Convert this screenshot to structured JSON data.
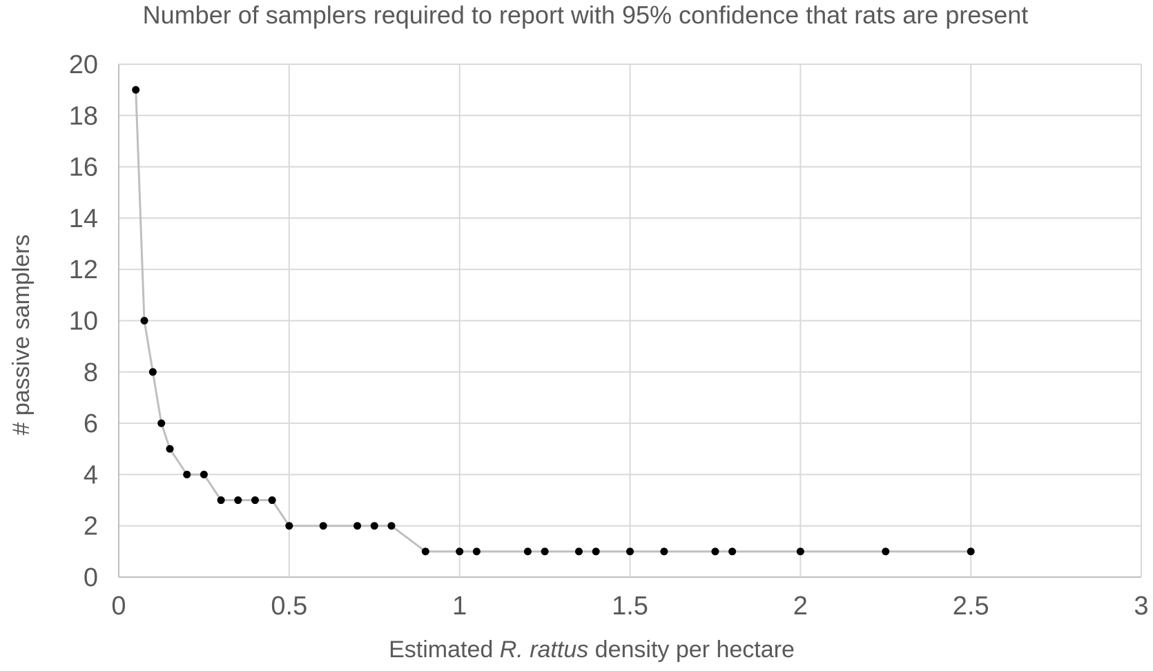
{
  "chart_data": {
    "type": "line",
    "title": "Number of samplers required to report with 95% confidence that rats are present",
    "xlabel": {
      "before": "Estimated ",
      "italic": "R. rattus",
      "after": " density per hectare"
    },
    "ylabel": "# passive samplers",
    "xlim": [
      0,
      3
    ],
    "ylim": [
      0,
      20
    ],
    "x_ticks": [
      "0",
      "0.5",
      "1",
      "1.5",
      "2",
      "2.5",
      "3"
    ],
    "y_ticks": [
      "0",
      "2",
      "4",
      "6",
      "8",
      "10",
      "12",
      "14",
      "16",
      "18",
      "20"
    ],
    "grid": true,
    "legend": false,
    "line_color": "#bfbfbf",
    "marker_color": "#000000",
    "axis_text_color": "#595959",
    "grid_color": "#d9d9d9",
    "series": [
      {
        "x": [
          0.05,
          0.075,
          0.1,
          0.125,
          0.15,
          0.2,
          0.25,
          0.3,
          0.35,
          0.4,
          0.45,
          0.5,
          0.6,
          0.7,
          0.75,
          0.8,
          0.9,
          1.0,
          1.05,
          1.2,
          1.25,
          1.35,
          1.4,
          1.5,
          1.6,
          1.75,
          1.8,
          2.0,
          2.25,
          2.5
        ],
        "y": [
          19,
          10,
          8,
          6,
          5,
          4,
          4,
          3,
          3,
          3,
          3,
          2,
          2,
          2,
          2,
          2,
          1,
          1,
          1,
          1,
          1,
          1,
          1,
          1,
          1,
          1,
          1,
          1,
          1,
          1
        ]
      }
    ]
  }
}
